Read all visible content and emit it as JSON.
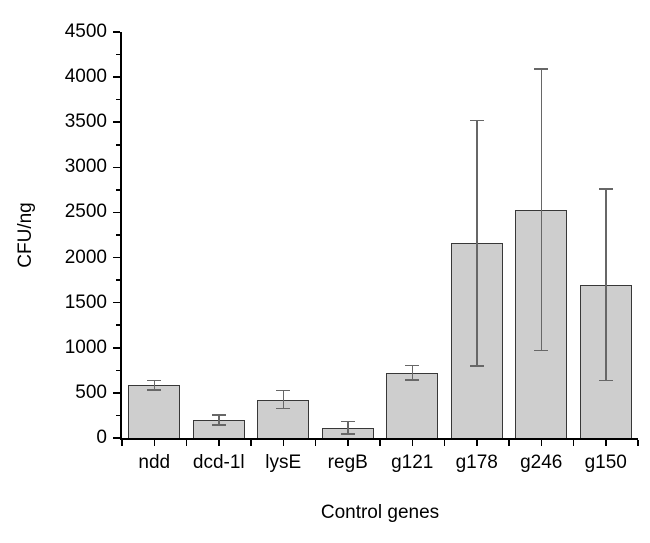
{
  "chart_data": {
    "type": "bar",
    "title": "",
    "categories": [
      "ndd",
      "dcd-1l",
      "lysE",
      "regB",
      "g121",
      "g178",
      "g246",
      "g150"
    ],
    "values": [
      585,
      200,
      425,
      115,
      725,
      2160,
      2530,
      1700
    ],
    "errors": [
      55,
      55,
      100,
      70,
      80,
      1360,
      1560,
      1060
    ],
    "series_name": "CFU per ng",
    "xlabel": "Control genes",
    "ylabel": "CFU/ng",
    "ylim": [
      0,
      4500
    ],
    "y_major_step": 500,
    "y_minor_step": 250,
    "y_tick_labels": [
      "0",
      "500",
      "1000",
      "1500",
      "2000",
      "2500",
      "3000",
      "3500",
      "4000",
      "4500"
    ],
    "grid": false,
    "legend": false,
    "error_bars": true,
    "colors": {
      "bar_fill": "#cecece",
      "bar_border": "#383838",
      "error_bar": "#676767",
      "axis": "#000000",
      "text": "#000000",
      "background": "#ffffff"
    }
  }
}
